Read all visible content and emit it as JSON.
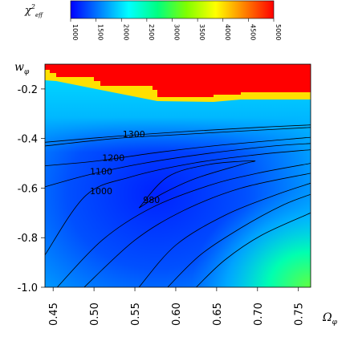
{
  "chart_data": {
    "type": "heatmap",
    "title": "",
    "xlabel": "Ω",
    "xlabel_sub": "φ",
    "ylabel": "w",
    "ylabel_sub": "φ",
    "xlim": [
      0.44,
      0.765
    ],
    "ylim": [
      -1.0,
      -0.1
    ],
    "x_ticks": [
      0.45,
      0.5,
      0.55,
      0.6,
      0.65,
      0.7,
      0.75
    ],
    "x_tick_labels": [
      "0.45",
      "0.50",
      "0.55",
      "0.60",
      "0.65",
      "0.70",
      "0.75"
    ],
    "y_ticks": [
      -0.2,
      -0.4,
      -0.6,
      -0.8,
      -1.0
    ],
    "y_tick_labels": [
      "-0.2",
      "-0.4",
      "-0.6",
      "-0.8",
      "-1.0"
    ],
    "colorbar": {
      "label": "χ",
      "label_sup": "2",
      "label_sub": "eff",
      "range": [
        1000,
        5000
      ],
      "ticks": [
        1000,
        1500,
        2000,
        2500,
        3000,
        3500,
        4000,
        4500,
        5000
      ],
      "tick_labels": [
        "1000",
        "1500",
        "2000",
        "2500",
        "3000",
        "3500",
        "4000",
        "4500",
        "5000"
      ],
      "colors": [
        "#0000ff",
        "#0080ff",
        "#00ffff",
        "#00ff80",
        "#80ff00",
        "#ffff00",
        "#ff8000",
        "#ff0000"
      ]
    },
    "contours": [
      {
        "level": 980,
        "label": "980",
        "label_at": [
          0.56,
          -0.66
        ],
        "points": [
          [
            0.555,
            -0.68
          ],
          [
            0.585,
            -0.62
          ],
          [
            0.625,
            -0.56
          ],
          [
            0.68,
            -0.505
          ],
          [
            0.695,
            -0.49
          ],
          [
            0.64,
            -0.505
          ],
          [
            0.59,
            -0.555
          ],
          [
            0.555,
            -0.68
          ]
        ]
      },
      {
        "level": 1000,
        "label": "1000",
        "label_at": [
          0.495,
          -0.625
        ],
        "points": [
          [
            0.44,
            -0.87
          ],
          [
            0.49,
            -0.63
          ],
          [
            0.545,
            -0.555
          ],
          [
            0.62,
            -0.5
          ],
          [
            0.7,
            -0.465
          ],
          [
            0.765,
            -0.445
          ]
        ]
      },
      {
        "level": 1100,
        "label": "1100",
        "label_at": [
          0.495,
          -0.545
        ],
        "points": [
          [
            0.44,
            -0.595
          ],
          [
            0.495,
            -0.545
          ],
          [
            0.56,
            -0.5
          ],
          [
            0.64,
            -0.46
          ],
          [
            0.72,
            -0.43
          ],
          [
            0.765,
            -0.42
          ]
        ]
      },
      {
        "level": 1200,
        "label": "1200",
        "label_at": [
          0.51,
          -0.49
        ],
        "points": [
          [
            0.44,
            -0.51
          ],
          [
            0.505,
            -0.49
          ],
          [
            0.58,
            -0.455
          ],
          [
            0.66,
            -0.425
          ],
          [
            0.765,
            -0.395
          ]
        ]
      },
      {
        "level": 1300,
        "label": "1300",
        "label_at": [
          0.535,
          -0.395
        ],
        "points": [
          [
            0.44,
            -0.43
          ],
          [
            0.525,
            -0.4
          ],
          [
            0.6,
            -0.385
          ],
          [
            0.68,
            -0.37
          ],
          [
            0.765,
            -0.355
          ]
        ]
      },
      {
        "level": 1400,
        "label": "",
        "points": [
          [
            0.44,
            -0.415
          ],
          [
            0.53,
            -0.39
          ],
          [
            0.62,
            -0.37
          ],
          [
            0.7,
            -0.355
          ],
          [
            0.765,
            -0.345
          ]
        ]
      },
      {
        "level": 1050,
        "label": "",
        "points": [
          [
            0.455,
            -1.0
          ],
          [
            0.51,
            -0.81
          ],
          [
            0.57,
            -0.68
          ],
          [
            0.64,
            -0.59
          ],
          [
            0.7,
            -0.54
          ],
          [
            0.765,
            -0.5
          ]
        ]
      },
      {
        "level": 1150,
        "label": "",
        "points": [
          [
            0.488,
            -1.0
          ],
          [
            0.55,
            -0.81
          ],
          [
            0.61,
            -0.69
          ],
          [
            0.68,
            -0.6
          ],
          [
            0.765,
            -0.54
          ]
        ]
      },
      {
        "level": 1250,
        "label": "",
        "points": [
          [
            0.555,
            -1.0
          ],
          [
            0.6,
            -0.83
          ],
          [
            0.66,
            -0.71
          ],
          [
            0.72,
            -0.63
          ],
          [
            0.765,
            -0.58
          ]
        ]
      },
      {
        "level": 1350,
        "label": "",
        "points": [
          [
            0.59,
            -1.0
          ],
          [
            0.63,
            -0.87
          ],
          [
            0.68,
            -0.76
          ],
          [
            0.73,
            -0.67
          ],
          [
            0.765,
            -0.625
          ]
        ]
      },
      {
        "level": 1450,
        "label": "",
        "points": [
          [
            0.625,
            -1.0
          ],
          [
            0.66,
            -0.89
          ],
          [
            0.705,
            -0.79
          ],
          [
            0.765,
            -0.7
          ]
        ]
      }
    ]
  }
}
